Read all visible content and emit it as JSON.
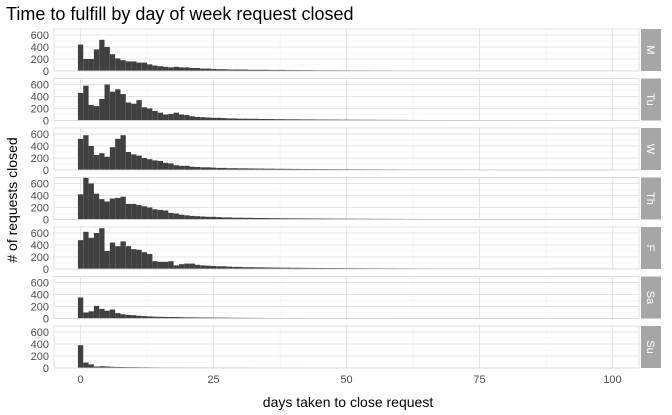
{
  "chart_data": {
    "type": "histogram",
    "title": "Time to fulfill by day of week request closed",
    "xlabel": "days taken to close request",
    "ylabel": "# of requests closed",
    "xlim": [
      -5,
      105
    ],
    "ylim": [
      0,
      700
    ],
    "x_ticks": [
      0,
      25,
      50,
      75,
      100
    ],
    "y_ticks": [
      0,
      200,
      400,
      600
    ],
    "bin_width": 1,
    "bar_color": "#404040",
    "strip_color": "#a6a6a6",
    "grid": true,
    "panels": [
      {
        "label": "M",
        "values": [
          440,
          200,
          200,
          360,
          520,
          400,
          280,
          210,
          180,
          160,
          160,
          140,
          140,
          110,
          90,
          80,
          70,
          60,
          70,
          60,
          60,
          50,
          50,
          40,
          40,
          35,
          30,
          30,
          25,
          25,
          25,
          25,
          20,
          20,
          20,
          20,
          18,
          18,
          18,
          16,
          15,
          15,
          14,
          14,
          13,
          12,
          12,
          12,
          12,
          11,
          11,
          10,
          10,
          10,
          10,
          9,
          9,
          9,
          9,
          8,
          8,
          8,
          8,
          8,
          7,
          7,
          7,
          7,
          7,
          6,
          6,
          6,
          6,
          6,
          6,
          6,
          5,
          5,
          5,
          5,
          5,
          5,
          5,
          5,
          5,
          4,
          4,
          4,
          4,
          4,
          4,
          4,
          4,
          4,
          4,
          3,
          3,
          3,
          3,
          3,
          3
        ]
      },
      {
        "label": "Tu",
        "values": [
          460,
          580,
          260,
          240,
          360,
          600,
          480,
          520,
          440,
          300,
          280,
          340,
          220,
          200,
          160,
          130,
          100,
          110,
          130,
          100,
          90,
          70,
          60,
          55,
          50,
          45,
          45,
          40,
          35,
          35,
          30,
          30,
          28,
          28,
          26,
          25,
          24,
          22,
          22,
          20,
          20,
          19,
          18,
          18,
          17,
          16,
          16,
          15,
          15,
          14,
          14,
          13,
          13,
          12,
          12,
          12,
          11,
          11,
          11,
          10,
          10,
          10,
          9,
          9,
          9,
          8,
          8,
          8,
          8,
          8,
          7,
          7,
          7,
          7,
          7,
          6,
          6,
          6,
          6,
          6,
          6,
          5,
          5,
          5,
          5,
          5,
          5,
          5,
          5,
          4,
          4,
          4,
          4,
          4,
          4,
          4,
          4,
          4,
          3,
          3,
          3
        ]
      },
      {
        "label": "W",
        "values": [
          520,
          580,
          400,
          250,
          280,
          220,
          380,
          520,
          580,
          300,
          260,
          240,
          200,
          180,
          160,
          150,
          120,
          110,
          80,
          70,
          70,
          55,
          50,
          45,
          45,
          40,
          35,
          35,
          30,
          30,
          28,
          28,
          26,
          25,
          24,
          22,
          22,
          20,
          20,
          19,
          18,
          18,
          17,
          16,
          16,
          15,
          15,
          14,
          14,
          13,
          13,
          12,
          12,
          12,
          11,
          11,
          11,
          10,
          10,
          10,
          9,
          9,
          9,
          8,
          8,
          8,
          8,
          8,
          7,
          7,
          7,
          7,
          7,
          6,
          6,
          6,
          6,
          6,
          6,
          5,
          5,
          5,
          5,
          5,
          5,
          5,
          5,
          4,
          4,
          4,
          4,
          4,
          4,
          4,
          4,
          4,
          3,
          3,
          3,
          3,
          3
        ]
      },
      {
        "label": "Th",
        "values": [
          420,
          700,
          600,
          430,
          340,
          300,
          350,
          360,
          380,
          260,
          260,
          240,
          220,
          200,
          170,
          160,
          150,
          110,
          100,
          80,
          70,
          60,
          55,
          50,
          45,
          45,
          40,
          35,
          35,
          30,
          30,
          28,
          28,
          26,
          25,
          24,
          22,
          22,
          20,
          20,
          19,
          18,
          18,
          17,
          16,
          16,
          15,
          15,
          14,
          14,
          13,
          13,
          12,
          12,
          12,
          11,
          11,
          11,
          10,
          10,
          10,
          9,
          9,
          9,
          8,
          8,
          8,
          8,
          8,
          7,
          7,
          7,
          7,
          7,
          6,
          6,
          6,
          6,
          6,
          6,
          5,
          5,
          5,
          5,
          5,
          5,
          5,
          5,
          4,
          4,
          4,
          4,
          4,
          4,
          4,
          4,
          4,
          3,
          3,
          3,
          3
        ]
      },
      {
        "label": "F",
        "values": [
          480,
          620,
          520,
          600,
          680,
          300,
          440,
          380,
          460,
          380,
          330,
          320,
          280,
          250,
          130,
          120,
          120,
          130,
          60,
          80,
          90,
          90,
          70,
          60,
          55,
          50,
          45,
          45,
          40,
          35,
          35,
          30,
          30,
          28,
          28,
          26,
          25,
          24,
          22,
          22,
          20,
          20,
          19,
          18,
          18,
          17,
          16,
          16,
          15,
          15,
          14,
          14,
          13,
          13,
          12,
          12,
          12,
          11,
          11,
          11,
          10,
          10,
          10,
          9,
          9,
          9,
          8,
          8,
          8,
          8,
          8,
          7,
          7,
          7,
          7,
          7,
          6,
          6,
          6,
          6,
          6,
          6,
          5,
          5,
          5,
          5,
          5,
          5,
          5,
          5,
          4,
          4,
          4,
          4,
          4,
          4,
          4,
          4,
          4,
          3,
          3
        ]
      },
      {
        "label": "Sa",
        "values": [
          350,
          100,
          120,
          210,
          160,
          130,
          150,
          90,
          70,
          60,
          55,
          45,
          40,
          35,
          30,
          28,
          26,
          25,
          24,
          22,
          20,
          19,
          18,
          17,
          16,
          15,
          14,
          14,
          13,
          12,
          12,
          11,
          11,
          10,
          10,
          9,
          9,
          9,
          8,
          8,
          8,
          8,
          7,
          7,
          7,
          7,
          6,
          6,
          6,
          6,
          6,
          5,
          5,
          5,
          5,
          5,
          5,
          5,
          4,
          4,
          4,
          4,
          4,
          4,
          4,
          4,
          4,
          3,
          3,
          3,
          3,
          3,
          3,
          3,
          3,
          3,
          3,
          3,
          3,
          3,
          2,
          2,
          2,
          2,
          2,
          2,
          2,
          2,
          2,
          2,
          2,
          2,
          2,
          2,
          2,
          2,
          2,
          2,
          2,
          2,
          2
        ]
      },
      {
        "label": "Su",
        "values": [
          380,
          90,
          60,
          25,
          30,
          25,
          20,
          18,
          16,
          15,
          14,
          13,
          12,
          11,
          10,
          9,
          9,
          8,
          8,
          7,
          7,
          6,
          6,
          6,
          5,
          5,
          5,
          5,
          4,
          4,
          4,
          4,
          4,
          3,
          3,
          3,
          3,
          3,
          3,
          3,
          3,
          3,
          3,
          2,
          2,
          2,
          2,
          2,
          2,
          2,
          2,
          2,
          2,
          2,
          2,
          2,
          2,
          2,
          2,
          2,
          2,
          2,
          2,
          2,
          2,
          2,
          2,
          2,
          2,
          2,
          2,
          2,
          2,
          2,
          2,
          2,
          2,
          2,
          2,
          2,
          2,
          2,
          2,
          2,
          2,
          2,
          2,
          2,
          2,
          2,
          2,
          2,
          2,
          2,
          2,
          2,
          2,
          2,
          2,
          2,
          2
        ]
      }
    ]
  }
}
